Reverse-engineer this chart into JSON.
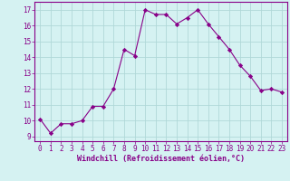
{
  "x": [
    0,
    1,
    2,
    3,
    4,
    5,
    6,
    7,
    8,
    9,
    10,
    11,
    12,
    13,
    14,
    15,
    16,
    17,
    18,
    19,
    20,
    21,
    22,
    23
  ],
  "y": [
    10.1,
    9.2,
    9.8,
    9.8,
    10.0,
    10.9,
    10.9,
    12.0,
    14.5,
    14.1,
    17.0,
    16.7,
    16.7,
    16.1,
    16.5,
    17.0,
    16.1,
    15.3,
    14.5,
    13.5,
    12.8,
    11.9,
    12.0,
    11.8
  ],
  "xlabel": "Windchill (Refroidissement éolien,°C)",
  "ylim": [
    8.7,
    17.5
  ],
  "xlim": [
    -0.5,
    23.5
  ],
  "yticks": [
    9,
    10,
    11,
    12,
    13,
    14,
    15,
    16,
    17
  ],
  "xticks": [
    0,
    1,
    2,
    3,
    4,
    5,
    6,
    7,
    8,
    9,
    10,
    11,
    12,
    13,
    14,
    15,
    16,
    17,
    18,
    19,
    20,
    21,
    22,
    23
  ],
  "line_color": "#880088",
  "marker": "D",
  "markersize": 2.2,
  "linewidth": 0.8,
  "bg_color": "#d5f2f2",
  "grid_color": "#b0d8d8",
  "label_color": "#880088",
  "tick_fontsize": 5.5,
  "xlabel_fontsize": 6.0
}
